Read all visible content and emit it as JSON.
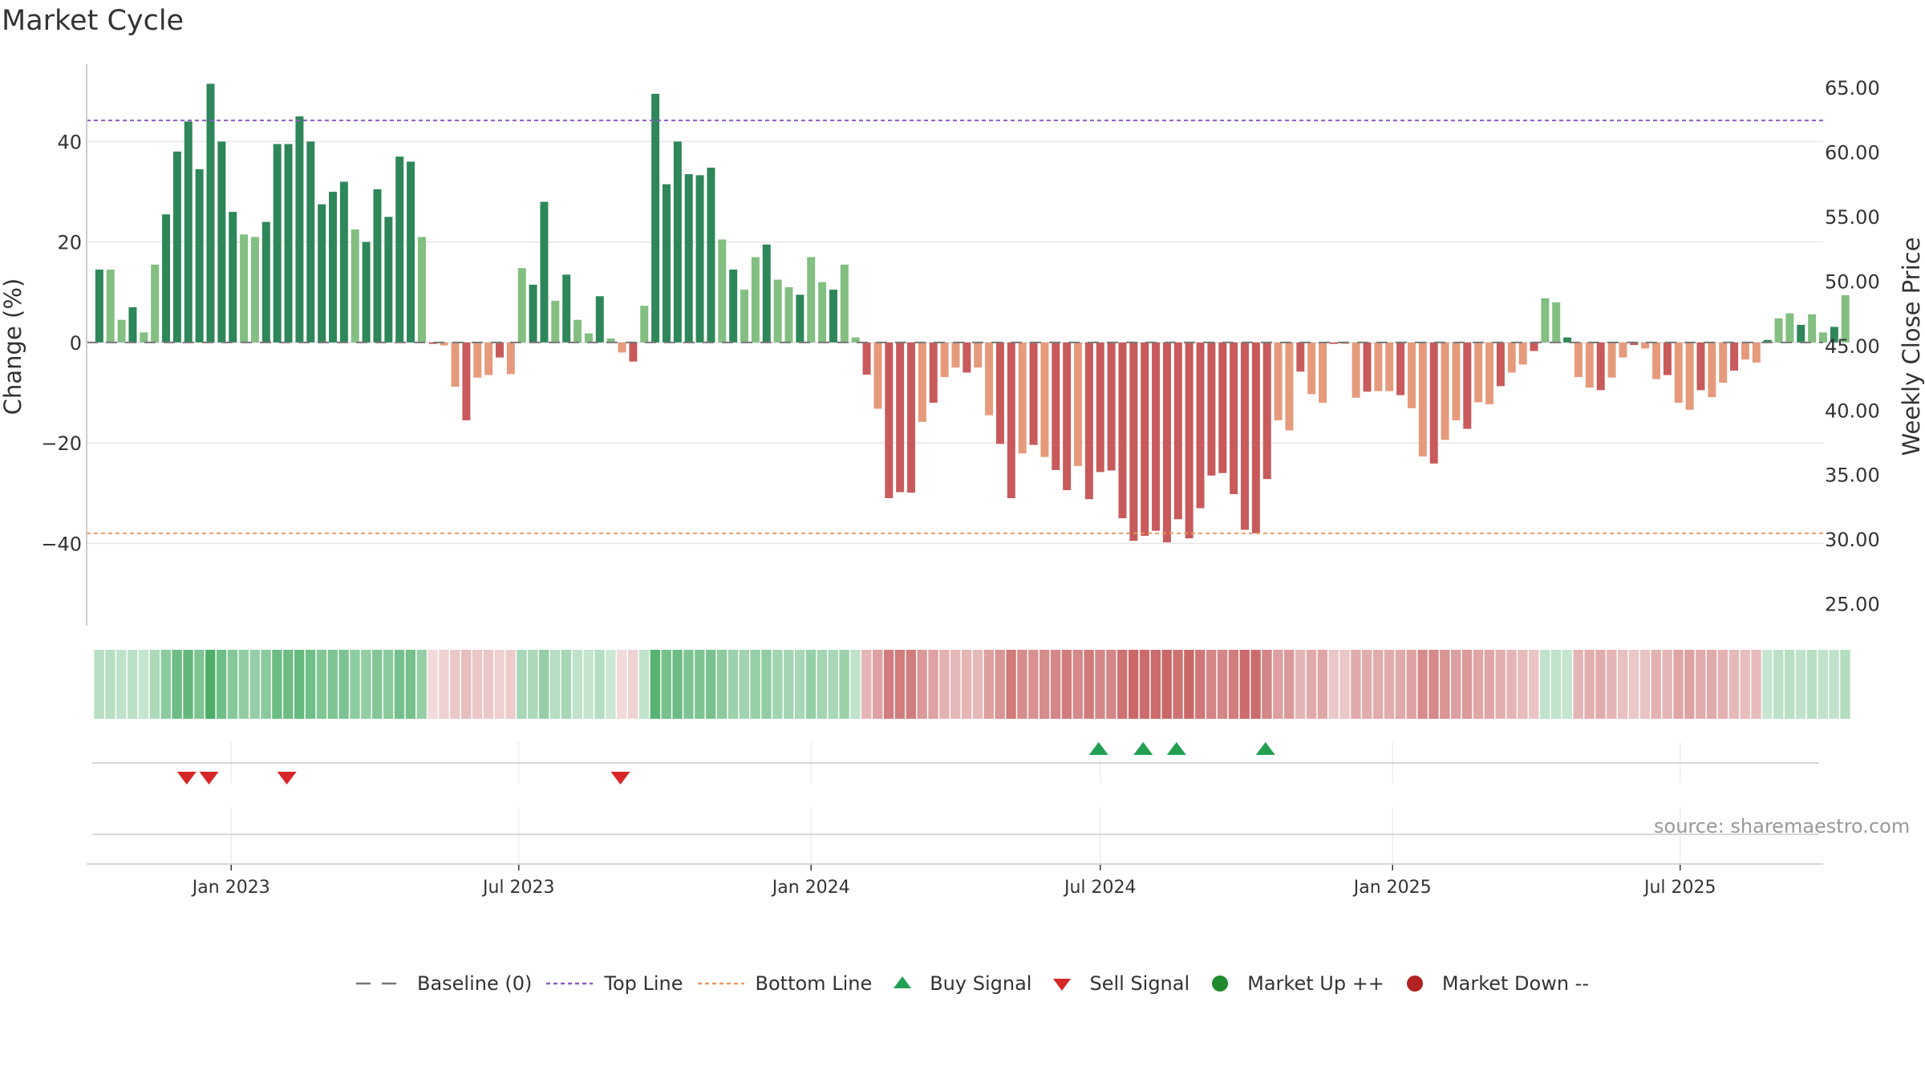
{
  "chart_data": {
    "title": "Market Cycle",
    "type": "bar",
    "ylabel_left": "Change (%)",
    "ylabel_right": "Weekly Close Price",
    "ylim_left": [
      -56.4,
      55.4
    ],
    "ylim_right": [
      23.3,
      66.8
    ],
    "left_ticks": [
      "40",
      "20",
      "0",
      "−20",
      "−40"
    ],
    "left_tick_values": [
      40,
      20,
      0,
      -20,
      -40
    ],
    "right_ticks": [
      "65.00",
      "60.00",
      "55.00",
      "50.00",
      "45.00",
      "40.00",
      "35.00",
      "30.00",
      "25.00"
    ],
    "right_tick_values": [
      65,
      60,
      55,
      50,
      45,
      40,
      35,
      30,
      25
    ],
    "top_line": 44.2,
    "bottom_line": -38.0,
    "x_tick_labels": [
      "Jan 2023",
      "Jul 2023",
      "Jan 2024",
      "Jul 2024",
      "Jan 2025",
      "Jul 2025"
    ],
    "x_tick_dates": [
      "2023-01-01",
      "2023-07-01",
      "2024-01-01",
      "2024-07-01",
      "2025-01-01",
      "2025-07-01"
    ],
    "x_range": [
      "2022-10-02",
      "2025-09-29"
    ],
    "first_week": "2022-10-10",
    "weekly_change": [
      14.5,
      14.5,
      4.5,
      7.0,
      2.0,
      15.5,
      25.5,
      38.0,
      44.0,
      34.5,
      51.5,
      40.0,
      26.0,
      21.5,
      21.0,
      24.0,
      39.5,
      39.5,
      45.0,
      40.0,
      27.5,
      30.0,
      32.0,
      22.5,
      20.0,
      30.5,
      25.0,
      37.0,
      36.0,
      21.0,
      -0.3,
      -0.6,
      -8.8,
      -15.5,
      -7.0,
      -6.5,
      -3.0,
      -6.3,
      14.8,
      11.5,
      28.0,
      8.3,
      13.5,
      4.5,
      1.8,
      9.2,
      0.8,
      -2.0,
      -3.8,
      7.3,
      49.5,
      31.5,
      40.0,
      33.5,
      33.3,
      34.8,
      20.5,
      14.5,
      10.5,
      17.0,
      19.5,
      12.5,
      11.0,
      9.5,
      17.0,
      12.0,
      10.5,
      15.5,
      1.0,
      -6.4,
      -13.2,
      -31.0,
      -29.8,
      -29.9,
      -15.8,
      -12.0,
      -6.9,
      -5.0,
      -6.0,
      -5.0,
      -14.5,
      -20.2,
      -31.0,
      -22.1,
      -20.4,
      -22.8,
      -25.4,
      -29.4,
      -24.6,
      -31.2,
      -25.8,
      -25.5,
      -35.0,
      -39.5,
      -38.5,
      -37.5,
      -39.8,
      -35.2,
      -39.0,
      -33.0,
      -26.5,
      -26.0,
      -30.2,
      -37.3,
      -38.0,
      -27.2,
      -15.5,
      -17.5,
      -5.8,
      -10.3,
      -12.0,
      -0.3,
      -0.3,
      -11.0,
      -9.8,
      -9.7,
      -9.7,
      -10.5,
      -13.1,
      -22.7,
      -24.1,
      -19.4,
      -15.5,
      -17.2,
      -11.9,
      -12.3,
      -8.7,
      -6.0,
      -4.4,
      -1.7,
      8.8,
      8.0,
      1.0,
      -6.9,
      -9.0,
      -9.5,
      -7.0,
      -3.0,
      -0.5,
      -1.2,
      -7.3,
      -6.5,
      -12.0,
      -13.4,
      -9.5,
      -10.9,
      -8.0,
      -5.6,
      -3.4,
      -4.0,
      0.5,
      4.8,
      5.8,
      3.5,
      5.6,
      2.0,
      3.1,
      9.4
    ],
    "cycle_strip_intensity": [
      0.35,
      0.35,
      0.3,
      0.32,
      0.28,
      0.4,
      0.55,
      0.7,
      0.75,
      0.62,
      0.85,
      0.68,
      0.58,
      0.52,
      0.5,
      0.56,
      0.7,
      0.7,
      0.74,
      0.68,
      0.6,
      0.62,
      0.63,
      0.55,
      0.52,
      0.6,
      0.56,
      0.66,
      0.66,
      0.5,
      0.2,
      0.25,
      0.3,
      0.35,
      0.3,
      0.3,
      0.25,
      0.28,
      0.42,
      0.4,
      0.5,
      0.35,
      0.42,
      0.3,
      0.28,
      0.35,
      0.25,
      0.2,
      0.25,
      0.3,
      0.8,
      0.65,
      0.7,
      0.62,
      0.62,
      0.64,
      0.55,
      0.48,
      0.45,
      0.5,
      0.52,
      0.45,
      0.44,
      0.42,
      0.5,
      0.44,
      0.42,
      0.48,
      0.3,
      0.4,
      0.5,
      0.7,
      0.7,
      0.7,
      0.55,
      0.5,
      0.42,
      0.38,
      0.4,
      0.38,
      0.52,
      0.58,
      0.72,
      0.62,
      0.6,
      0.62,
      0.65,
      0.7,
      0.64,
      0.72,
      0.65,
      0.65,
      0.76,
      0.82,
      0.8,
      0.8,
      0.82,
      0.76,
      0.82,
      0.74,
      0.66,
      0.66,
      0.7,
      0.8,
      0.8,
      0.66,
      0.52,
      0.55,
      0.4,
      0.46,
      0.48,
      0.3,
      0.3,
      0.46,
      0.45,
      0.45,
      0.45,
      0.46,
      0.5,
      0.62,
      0.64,
      0.58,
      0.52,
      0.55,
      0.48,
      0.48,
      0.44,
      0.4,
      0.36,
      0.32,
      0.3,
      0.3,
      0.28,
      0.4,
      0.44,
      0.45,
      0.4,
      0.34,
      0.3,
      0.32,
      0.42,
      0.4,
      0.48,
      0.5,
      0.45,
      0.46,
      0.42,
      0.38,
      0.35,
      0.36,
      0.28,
      0.32,
      0.34,
      0.3,
      0.34,
      0.3,
      0.3,
      0.36
    ],
    "buy_signals": [
      "2024-06-30",
      "2024-07-28",
      "2024-08-18",
      "2024-10-13"
    ],
    "sell_signals": [
      "2022-12-04",
      "2022-12-18",
      "2023-02-05",
      "2023-09-03"
    ],
    "legend": [
      {
        "label": "Baseline (0)",
        "marker": "dashed-gray-line",
        "color": "#777777"
      },
      {
        "label": "Top Line",
        "marker": "dotted-purple-line",
        "color": "#8e5ec6"
      },
      {
        "label": "Bottom Line",
        "marker": "dotted-orange-line",
        "color": "#e69a64"
      },
      {
        "label": "Buy Signal",
        "marker": "up-triangle",
        "color": "#22a052"
      },
      {
        "label": "Sell Signal",
        "marker": "down-triangle",
        "color": "#d62728"
      },
      {
        "label": "Market Up ++",
        "marker": "circle",
        "color": "#208a2c"
      },
      {
        "label": "Market Down --",
        "marker": "circle",
        "color": "#b22222"
      }
    ],
    "grid": true,
    "legend_position": "bottom-center"
  },
  "colors": {
    "up_strong": "#2e8759",
    "up_light": "#82bf81",
    "down_strong": "#c85a5b",
    "down_light": "#e69a7c",
    "top_line": "#8e5ec6",
    "bottom_line": "#e69a64",
    "grid": "#e6e6e6",
    "axis": "#cccccc"
  },
  "source_text": "source: sharemaestro.com"
}
